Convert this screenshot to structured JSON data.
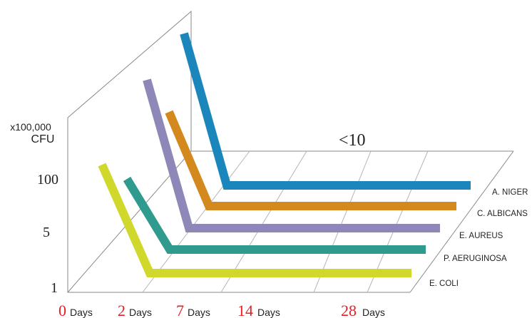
{
  "chart_data": {
    "type": "line",
    "ylabel_multiplier": "x100,000",
    "ylabel_unit": "CFU",
    "y_ticks": [
      "100",
      "5",
      "1"
    ],
    "x_ticks": [
      {
        "num": "0",
        "unit": "Days"
      },
      {
        "num": "2",
        "unit": "Days"
      },
      {
        "num": "7",
        "unit": "Days"
      },
      {
        "num": "14",
        "unit": "Days"
      },
      {
        "num": "28",
        "unit": "Days"
      }
    ],
    "annotation": "<10",
    "series": [
      {
        "name": "E. COLI",
        "color": "#cfd82b",
        "start": "100",
        "end": "<10"
      },
      {
        "name": "P. AERUGINOSA",
        "color": "#2f9b8f",
        "start": "100",
        "end": "<10"
      },
      {
        "name": "E. AUREUS",
        "color": "#8d88b8",
        "start": "100",
        "end": "<10"
      },
      {
        "name": "C. ALBICANS",
        "color": "#d4891e",
        "start": "100",
        "end": "<10"
      },
      {
        "name": "A. NIGER",
        "color": "#1b86bb",
        "start": "100",
        "end": "<10"
      }
    ],
    "grid": true,
    "legend": "right"
  }
}
